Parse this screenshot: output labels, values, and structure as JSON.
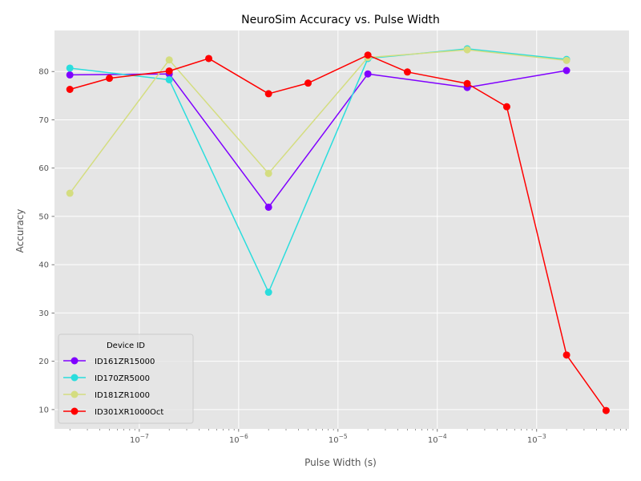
{
  "chart_data": {
    "type": "line",
    "title": "NeuroSim Accuracy vs. Pulse Width",
    "xlabel": "Pulse Width (s)",
    "ylabel": "Accuracy",
    "xscale": "log",
    "xlim": [
      1.4e-08,
      0.0085
    ],
    "ylim": [
      6.0,
      88.5
    ],
    "grid": true,
    "legend": {
      "title": "Device ID",
      "placement": "lower-left"
    },
    "x_ticks": [
      {
        "value": 1e-07,
        "mantissa": "10",
        "exp": "−7"
      },
      {
        "value": 1e-06,
        "mantissa": "10",
        "exp": "−6"
      },
      {
        "value": 1e-05,
        "mantissa": "10",
        "exp": "−5"
      },
      {
        "value": 0.0001,
        "mantissa": "10",
        "exp": "−4"
      },
      {
        "value": 0.001,
        "mantissa": "10",
        "exp": "−3"
      }
    ],
    "y_ticks": [
      10,
      20,
      30,
      40,
      50,
      60,
      70,
      80
    ],
    "series": [
      {
        "name": "ID161ZR15000",
        "color": "#8000ff",
        "x": [
          2e-08,
          2e-07,
          2e-06,
          2e-05,
          0.0002,
          0.002
        ],
        "y": [
          79.3,
          79.5,
          51.9,
          79.5,
          76.7,
          80.2
        ]
      },
      {
        "name": "ID170ZR5000",
        "color": "#2adddd",
        "x": [
          2e-08,
          2e-07,
          2e-06,
          2e-05,
          0.0002,
          0.002
        ],
        "y": [
          80.7,
          78.3,
          34.3,
          82.7,
          84.7,
          82.5
        ]
      },
      {
        "name": "ID181ZR1000",
        "color": "#d4dd80",
        "x": [
          2e-08,
          2e-07,
          2e-06,
          2e-05,
          0.0002,
          0.002
        ],
        "y": [
          54.8,
          82.4,
          58.9,
          82.9,
          84.5,
          82.3
        ]
      },
      {
        "name": "ID301XR1000Oct",
        "color": "#ff0000",
        "x": [
          2e-08,
          5e-08,
          2e-07,
          5e-07,
          2e-06,
          5e-06,
          2e-05,
          5e-05,
          0.0002,
          0.0005,
          0.002,
          0.005
        ],
        "y": [
          76.3,
          78.6,
          80.1,
          82.7,
          75.4,
          77.6,
          83.4,
          79.9,
          77.5,
          72.7,
          21.3,
          9.8
        ]
      }
    ]
  }
}
